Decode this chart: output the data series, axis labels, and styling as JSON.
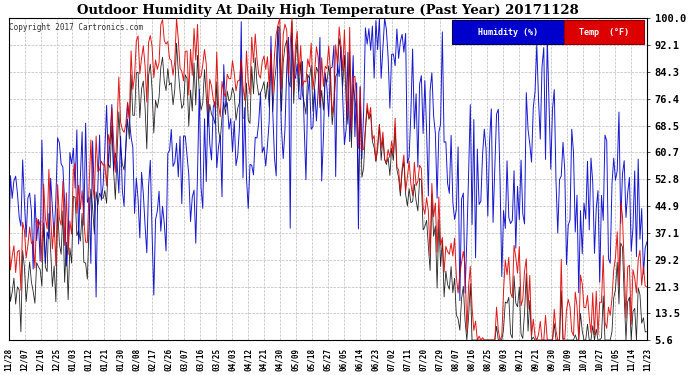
{
  "title": "Outdoor Humidity At Daily High Temperature (Past Year) 20171128",
  "copyright": "Copyright 2017 Cartronics.com",
  "background_color": "#ffffff",
  "plot_bg_color": "#ffffff",
  "grid_color": "#bbbbbb",
  "humidity_color": "#0000cc",
  "temp_color": "#dd0000",
  "black_color": "#000000",
  "yticks": [
    5.6,
    13.5,
    21.3,
    29.2,
    37.1,
    44.9,
    52.8,
    60.7,
    68.5,
    76.4,
    84.3,
    92.1,
    100.0
  ],
  "xtick_labels": [
    "11/28",
    "12/07",
    "12/16",
    "12/25",
    "01/03",
    "01/12",
    "01/21",
    "01/30",
    "02/08",
    "02/17",
    "02/26",
    "03/07",
    "03/16",
    "03/25",
    "04/03",
    "04/12",
    "04/21",
    "04/30",
    "05/09",
    "05/18",
    "05/27",
    "06/05",
    "06/14",
    "06/23",
    "07/02",
    "07/11",
    "07/20",
    "07/29",
    "08/07",
    "08/16",
    "08/25",
    "09/03",
    "09/12",
    "09/21",
    "09/30",
    "10/09",
    "10/18",
    "10/27",
    "11/05",
    "11/14",
    "11/23"
  ],
  "legend_humidity_label": "Humidity (%)",
  "legend_temp_label": "Temp  (°F)",
  "ymin": 5.6,
  "ymax": 100.0,
  "figwidth": 6.9,
  "figheight": 3.75,
  "dpi": 100
}
